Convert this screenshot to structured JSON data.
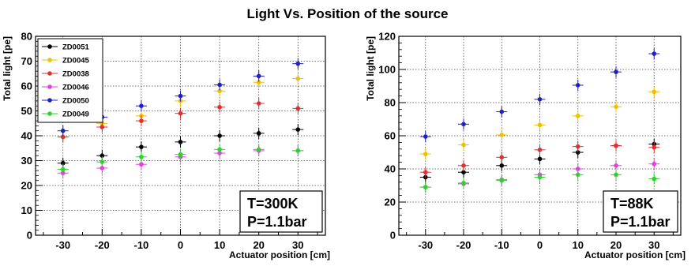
{
  "title": "Light Vs. Position of the source",
  "chart_data": [
    {
      "type": "scatter",
      "title": "Light Vs. Position of the source",
      "xlabel": "Actuator position [cm]",
      "ylabel": "Total light  [pe]",
      "xlim": [
        -37,
        37
      ],
      "ylim": [
        0,
        80
      ],
      "x_ticks": [
        "-30",
        "-20",
        "-10",
        "0",
        "10",
        "20",
        "30"
      ],
      "y_ticks": [
        "0",
        "10",
        "20",
        "30",
        "40",
        "50",
        "60",
        "70",
        "80"
      ],
      "grid": true,
      "legend_position": "top-left",
      "annotation": [
        "T=300K",
        "P=1.1bar"
      ],
      "x": [
        -30,
        -20,
        -10,
        0,
        10,
        20,
        30
      ],
      "series": [
        {
          "name": "ZD0051",
          "color": "#000000",
          "values": [
            29,
            32,
            35.5,
            37.5,
            40,
            41,
            42.5
          ]
        },
        {
          "name": "ZD0045",
          "color": "#f0c000",
          "values": [
            39.5,
            45,
            48,
            54,
            58,
            61.5,
            63
          ]
        },
        {
          "name": "ZD0038",
          "color": "#e03030",
          "values": [
            39.5,
            43.5,
            46,
            49,
            51.5,
            53,
            51
          ]
        },
        {
          "name": "ZD0046",
          "color": "#e040e0",
          "values": [
            25,
            27,
            28.5,
            31.5,
            33,
            34,
            34
          ]
        },
        {
          "name": "ZD0050",
          "color": "#2020c0",
          "values": [
            42,
            47.5,
            52,
            56,
            60.5,
            64,
            69
          ]
        },
        {
          "name": "ZD0049",
          "color": "#30d030",
          "values": [
            26.5,
            29.5,
            31.5,
            32.5,
            34.5,
            34.5,
            34
          ]
        }
      ]
    },
    {
      "type": "scatter",
      "title": "",
      "xlabel": "Actuator position [cm]",
      "ylabel": "Total light  [pe]",
      "xlim": [
        -37,
        37
      ],
      "ylim": [
        0,
        120
      ],
      "x_ticks": [
        "-30",
        "-20",
        "-10",
        "0",
        "10",
        "20",
        "30"
      ],
      "y_ticks": [
        "0",
        "20",
        "40",
        "60",
        "80",
        "100",
        "120"
      ],
      "grid": true,
      "annotation": [
        "T=88K",
        "P=1.1bar"
      ],
      "x": [
        -30,
        -20,
        -10,
        0,
        10,
        20,
        30
      ],
      "series": [
        {
          "name": "ZD0051",
          "color": "#000000",
          "values": [
            35,
            38,
            42,
            46,
            50,
            54,
            55
          ]
        },
        {
          "name": "ZD0045",
          "color": "#f0c000",
          "values": [
            49,
            54.5,
            60.5,
            66.5,
            72,
            77.5,
            86.5
          ]
        },
        {
          "name": "ZD0038",
          "color": "#e03030",
          "values": [
            38,
            42,
            47,
            51.5,
            53.5,
            54,
            53
          ]
        },
        {
          "name": "ZD0046",
          "color": "#e040e0",
          "values": [
            29,
            31,
            33.5,
            36.5,
            40,
            42,
            43
          ]
        },
        {
          "name": "ZD0050",
          "color": "#2020c0",
          "values": [
            59.5,
            67,
            74.5,
            82,
            90.5,
            98.5,
            109.5
          ]
        },
        {
          "name": "ZD0049",
          "color": "#30d030",
          "values": [
            29,
            31.5,
            33,
            35,
            36.5,
            36.5,
            34
          ]
        }
      ]
    }
  ]
}
